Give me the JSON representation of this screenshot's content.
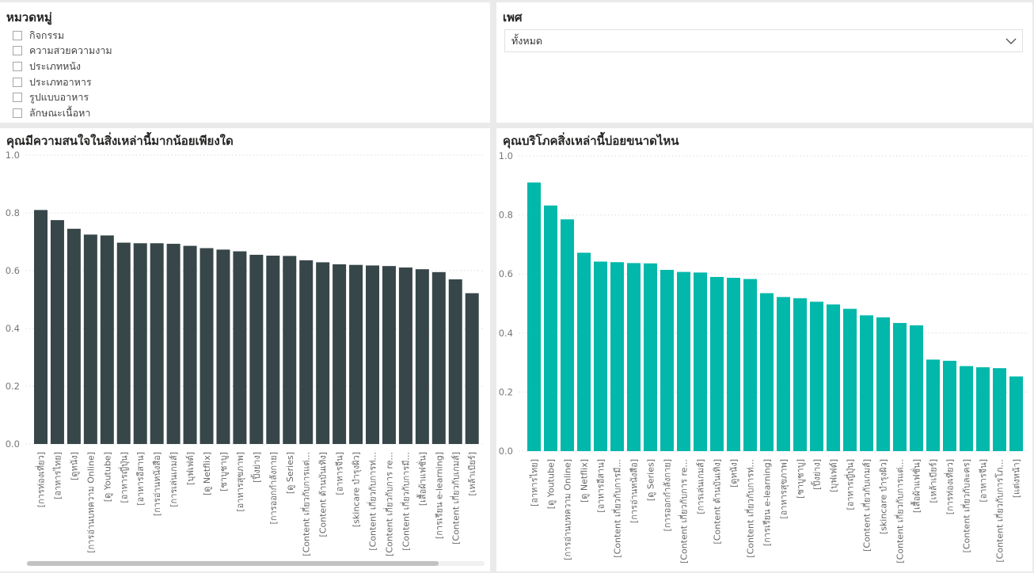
{
  "category_slicer": {
    "title": "หมวดหมู่",
    "items": [
      "กิจกรรม",
      "ความสวยความงาม",
      "ประเภทหนัง",
      "ประเภทอาหาร",
      "รูปแบบอาหาร",
      "ลักษณะเนื้อหา"
    ]
  },
  "gender_slicer": {
    "title": "เพศ",
    "selected": "ทั้งหมด"
  },
  "chart_data": [
    {
      "type": "bar",
      "title": "คุณมีความสนใจในสิ่งเหล่านี้มากน้อยเพียงใด",
      "color": "#374649",
      "ylim": [
        0,
        1
      ],
      "yticks": [
        "0.0",
        "0.2",
        "0.4",
        "0.6",
        "0.8",
        "1.0"
      ],
      "grid": true,
      "categories": [
        "[การท่องเที่ยว]",
        "[อาหารไทย]",
        "[ดูหนัง]",
        "[การอ่านบทความ Online]",
        "[ดู Youtube]",
        "[อาหารญี่ปุ่น]",
        "[อาหารอีสาน]",
        "[การอ่านหนังสือ]",
        "[การเล่นเกมส์]",
        "[บุฟเฟต์]",
        "[ดู Netflix]",
        "[ชาบูชาบู]",
        "[อาหารสุขภาพ]",
        "[ปิ้งย่าง]",
        "[การออกกำลังกาย]",
        "[ดู Series]",
        "[Content เกี่ยวกับการแต่...",
        "[Content ด้านบันเทิง]",
        "[อาหารจีน]",
        "[skincare บำรุงผิว]",
        "[Content เกี่ยวกับการท่...",
        "[Content เกี่ยวกับการ re...",
        "[Content เกี่ยวกับการมี...",
        "[เสื้อผ้าแฟชั่น]",
        "[การเรียน e-learning]",
        "[Content เกี่ยวกับเกมส์]",
        "[เหล้าเบียร์]"
      ],
      "values": [
        0.81,
        0.775,
        0.745,
        0.725,
        0.722,
        0.697,
        0.695,
        0.695,
        0.693,
        0.686,
        0.678,
        0.673,
        0.667,
        0.655,
        0.652,
        0.651,
        0.636,
        0.629,
        0.622,
        0.62,
        0.618,
        0.616,
        0.611,
        0.605,
        0.595,
        0.57,
        0.522
      ]
    },
    {
      "type": "bar",
      "title": "คุณบริโภคสิ่งเหล่านี้บ่อยขนาดไหน",
      "color": "#01B8AA",
      "ylim": [
        0,
        1
      ],
      "yticks": [
        "0.0",
        "0.2",
        "0.4",
        "0.6",
        "0.8",
        "1.0"
      ],
      "grid": true,
      "categories": [
        "[อาหารไทย]",
        "[ดู Youtube]",
        "[การอ่านบทความ Online]",
        "[ดู Netflix]",
        "[อาหารอีสาน]",
        "[Content เกี่ยวกับการมี...",
        "[การอ่านหนังสือ]",
        "[ดู Series]",
        "[การออกกำลังกาย]",
        "[Content เกี่ยวกับการ re...",
        "[การเล่นเกมส์]",
        "[Content ด้านบันเทิง]",
        "[ดูหนัง]",
        "[Content เกี่ยวกับการท่...",
        "[การเรียน e-learning]",
        "[อาหารสุขภาพ]",
        "[ชาบูชาบู]",
        "[ปิ้งย่าง]",
        "[บุฟเฟต์]",
        "[อาหารญี่ปุ่น]",
        "[Content เกี่ยวกับเกมส์]",
        "[skincare บำรุงผิว]",
        "[Content เกี่ยวกับการแต่...",
        "[เสื้อผ้าแฟชั่น]",
        "[เหล้าเบียร์]",
        "[การท่องเที่ยว]",
        "[Content เกี่ยวกับละคร]",
        "[อาหารจีน]",
        "[Content เกี่ยวกับการโภ...",
        "[แต่งหน้า]"
      ],
      "values": [
        0.91,
        0.832,
        0.785,
        0.672,
        0.642,
        0.64,
        0.637,
        0.636,
        0.614,
        0.607,
        0.605,
        0.59,
        0.587,
        0.583,
        0.535,
        0.522,
        0.518,
        0.506,
        0.497,
        0.482,
        0.46,
        0.453,
        0.434,
        0.426,
        0.31,
        0.306,
        0.288,
        0.284,
        0.281,
        0.253
      ]
    }
  ]
}
